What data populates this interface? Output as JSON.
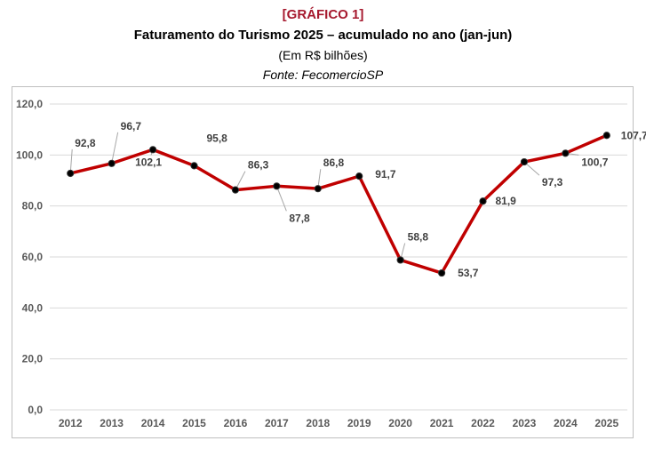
{
  "header": {
    "tag": "[GRÁFICO 1]",
    "title": "Faturamento do Turismo 2025 – acumulado no ano (jan-jun)",
    "subtitle": "(Em R$ bilhões)",
    "source": "Fonte: FecomercioSP"
  },
  "chart_data": {
    "type": "line",
    "title": "Faturamento do Turismo 2025 – acumulado no ano (jan-jun)",
    "subtitle": "(Em R$ bilhões)",
    "source": "Fonte: FecomercioSP",
    "xlabel": "",
    "ylabel": "",
    "categories": [
      "2012",
      "2013",
      "2014",
      "2015",
      "2016",
      "2017",
      "2018",
      "2019",
      "2020",
      "2021",
      "2022",
      "2023",
      "2024",
      "2025"
    ],
    "values": [
      92.8,
      96.7,
      102.1,
      95.8,
      86.3,
      87.8,
      86.8,
      91.7,
      58.8,
      53.7,
      81.9,
      97.3,
      100.7,
      107.7
    ],
    "data_labels": [
      "92,8",
      "96,7",
      "102,1",
      "95,8",
      "86,3",
      "87,8",
      "86,8",
      "91,7",
      "58,8",
      "53,7",
      "81,9",
      "97,3",
      "100,7",
      "107,7"
    ],
    "ylim": [
      0,
      120
    ],
    "yticks": [
      "0,0",
      "20,0",
      "40,0",
      "60,0",
      "80,0",
      "100,0",
      "120,0"
    ],
    "ytick_values": [
      0,
      20,
      40,
      60,
      80,
      100,
      120
    ],
    "grid": true,
    "legend": "none",
    "colors": {
      "line": "#c00000",
      "marker": "#000000",
      "grid": "#d9d9d9",
      "tag": "#a6192e"
    }
  }
}
